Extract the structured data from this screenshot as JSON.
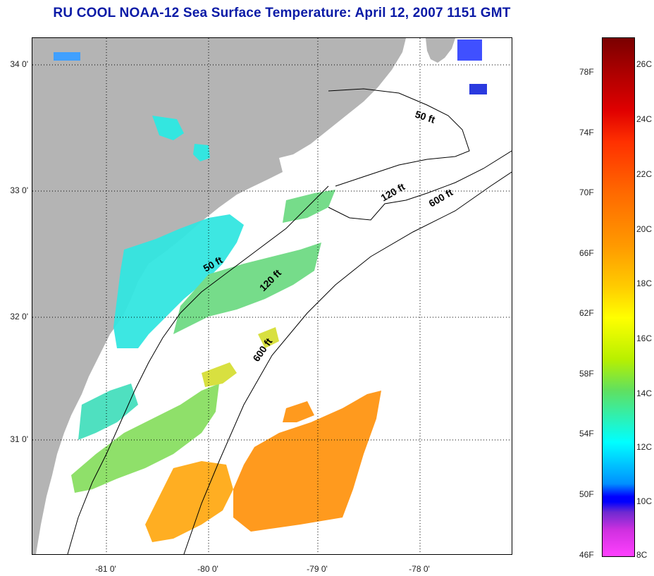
{
  "title": "RU COOL  NOAA-12  Sea Surface Temperature:  April 12, 2007 1151 GMT",
  "map": {
    "lat_labels": [
      "34 0'",
      "33 0'",
      "32 0'",
      "31 0'"
    ],
    "lon_labels": [
      "-81 0'",
      "-80 0'",
      "-79 0'",
      "-78 0'"
    ],
    "isobath_labels": [
      "50 ft",
      "120 ft",
      "600 ft",
      "50 ft",
      "120 ft",
      "600 ft"
    ],
    "colors": {
      "land": "#b4b4b4",
      "cool_water": "#33e6e0",
      "mid_water": "#7ee07a",
      "warm_water": "#ff9a1e",
      "cold_patch": "#4050ff"
    }
  },
  "colorbar": {
    "fahrenheit": [
      "78F",
      "74F",
      "70F",
      "66F",
      "62F",
      "58F",
      "54F",
      "50F",
      "46F"
    ],
    "celsius": [
      "26C",
      "24C",
      "22C",
      "20C",
      "18C",
      "16C",
      "14C",
      "12C",
      "10C",
      "8C"
    ]
  }
}
